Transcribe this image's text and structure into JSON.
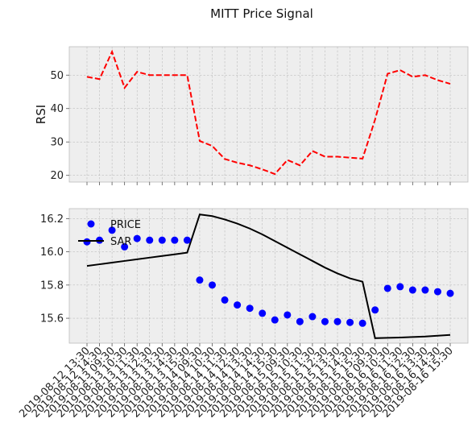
{
  "chart_data": {
    "title": "MITT Price Signal",
    "x_labels": [
      "2019-08-12 13:30",
      "2019-08-12 14:30",
      "2019-08-13 09:30",
      "2019-08-13 10:30",
      "2019-08-13 11:30",
      "2019-08-13 12:30",
      "2019-08-13 13:30",
      "2019-08-13 14:30",
      "2019-08-13 15:30",
      "2019-08-14 09:30",
      "2019-08-14 10:30",
      "2019-08-14 11:30",
      "2019-08-14 12:30",
      "2019-08-14 13:30",
      "2019-08-14 14:30",
      "2019-08-14 15:30",
      "2019-08-15 09:30",
      "2019-08-15 10:30",
      "2019-08-15 11:30",
      "2019-08-15 12:30",
      "2019-08-15 13:30",
      "2019-08-15 14:30",
      "2019-08-15 15:30",
      "2019-08-16 09:30",
      "2019-08-16 10:30",
      "2019-08-16 11:30",
      "2019-08-16 12:30",
      "2019-08-16 13:30",
      "2019-08-16 14:30",
      "2019-08-16 15:30"
    ],
    "panels": [
      {
        "type": "line",
        "ylabel": "RSI",
        "ylim": [
          18,
          58.5
        ],
        "yticks": [
          20,
          30,
          40,
          50
        ],
        "grid": true,
        "series": [
          {
            "name": "RSI",
            "color": "#ff0000",
            "style": "dashed",
            "values": [
              49.5,
              48.8,
              57.0,
              46.2,
              51.0,
              50.0,
              50.0,
              50.0,
              50.0,
              30.3,
              28.8,
              24.9,
              23.8,
              23.0,
              21.8,
              20.4,
              24.6,
              23.0,
              27.3,
              25.6,
              25.6,
              25.3,
              25.0,
              36.7,
              50.4,
              51.5,
              49.5,
              50.0,
              48.5,
              47.4
            ]
          }
        ]
      },
      {
        "type": "scatter+line",
        "ylim": [
          15.45,
          16.26
        ],
        "yticks": [
          15.6,
          15.8,
          16.0,
          16.2
        ],
        "grid": true,
        "legend_location": "upper-left",
        "series": [
          {
            "name": "PRICE",
            "type": "scatter",
            "color": "#0000ff",
            "values": [
              16.06,
              16.07,
              16.13,
              16.03,
              16.08,
              16.07,
              16.07,
              16.07,
              16.07,
              15.83,
              15.8,
              15.71,
              15.68,
              15.66,
              15.63,
              15.59,
              15.62,
              15.58,
              15.61,
              15.58,
              15.58,
              15.575,
              15.57,
              15.65,
              15.78,
              15.79,
              15.77,
              15.77,
              15.76,
              15.75
            ]
          },
          {
            "name": "SAR",
            "type": "line",
            "color": "#000000",
            "values": [
              15.915,
              15.925,
              15.935,
              15.945,
              15.955,
              15.965,
              15.975,
              15.985,
              15.995,
              16.225,
              16.215,
              16.195,
              16.17,
              16.14,
              16.105,
              16.065,
              16.025,
              15.985,
              15.945,
              15.905,
              15.87,
              15.84,
              15.82,
              15.48,
              15.482,
              15.484,
              15.487,
              15.49,
              15.495,
              15.5
            ]
          }
        ]
      }
    ]
  }
}
